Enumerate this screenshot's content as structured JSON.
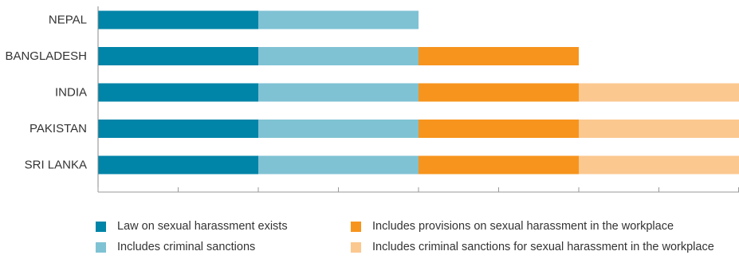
{
  "chart_data": {
    "type": "bar",
    "orientation": "horizontal",
    "stacked": true,
    "categories": [
      "NEPAL",
      "BANGLADESH",
      "INDIA",
      "PAKISTAN",
      "SRI LANKA"
    ],
    "series": [
      {
        "name": "Law on sexual harassment exists",
        "color": "#0084a8",
        "values": [
          1,
          1,
          1,
          1,
          1
        ]
      },
      {
        "name": "Includes criminal sanctions",
        "color": "#7fc2d4",
        "values": [
          1,
          1,
          1,
          1,
          1
        ]
      },
      {
        "name": "Includes provisions on sexual harassment in the workplace",
        "color": "#f7941d",
        "values": [
          0,
          1,
          1,
          1,
          1
        ]
      },
      {
        "name": "Includes criminal sanctions for sexual harassment in the workplace",
        "color": "#fbc890",
        "values": [
          0,
          0,
          1,
          1,
          1
        ]
      }
    ],
    "xlim": [
      0,
      4
    ],
    "grid": false,
    "legend_position": "bottom"
  }
}
